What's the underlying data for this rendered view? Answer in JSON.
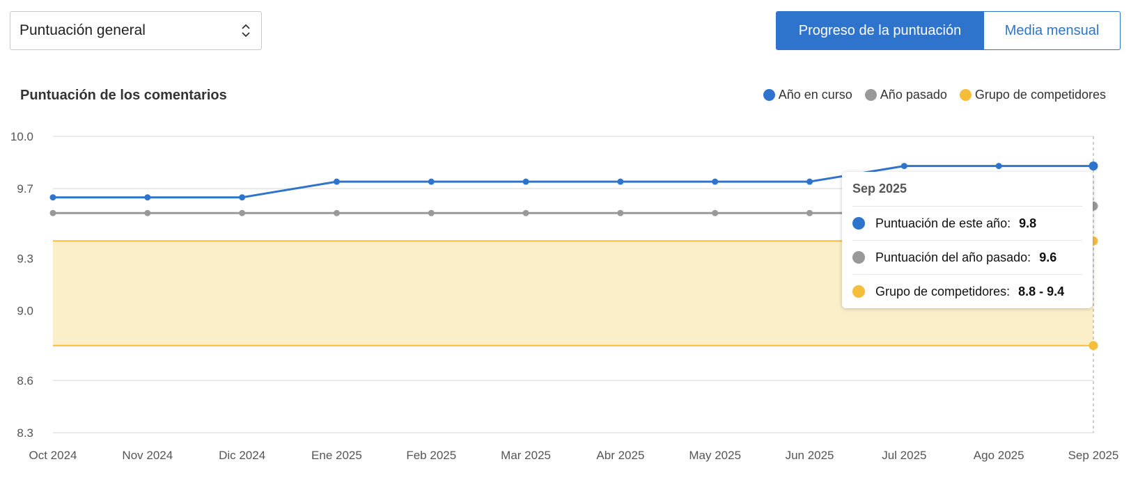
{
  "dropdown": {
    "value": "Puntuación general"
  },
  "toggle": {
    "active_label": "Progreso de la puntuación",
    "inactive_label": "Media mensual"
  },
  "colors": {
    "current": "#2f74cc",
    "past": "#999999",
    "competitors": "#f5bd3c",
    "band_fill": "#fbefc9"
  },
  "chart_data": {
    "type": "line",
    "title": "Puntuación de los comentarios",
    "categories": [
      "Oct 2024",
      "Nov 2024",
      "Dic 2024",
      "Ene 2025",
      "Feb 2025",
      "Mar 2025",
      "Abr 2025",
      "May 2025",
      "Jun 2025",
      "Jul 2025",
      "Ago 2025",
      "Sep 2025"
    ],
    "yticks": [
      "10.0",
      "9.7",
      "9.3",
      "9.0",
      "8.6",
      "8.3"
    ],
    "ylim": [
      8.3,
      10.0
    ],
    "legend_position": "top-right",
    "series": [
      {
        "name": "Año en curso",
        "values": [
          9.65,
          9.65,
          9.65,
          9.74,
          9.74,
          9.74,
          9.74,
          9.74,
          9.74,
          9.83,
          9.83,
          9.83
        ]
      },
      {
        "name": "Año pasado",
        "values": [
          9.56,
          9.56,
          9.56,
          9.56,
          9.56,
          9.56,
          9.56,
          9.56,
          9.56,
          9.56,
          9.56,
          9.6
        ]
      },
      {
        "name": "Grupo de competidores",
        "lower": [
          8.8,
          8.8,
          8.8,
          8.8,
          8.8,
          8.8,
          8.8,
          8.8,
          8.8,
          8.8,
          8.8,
          8.8
        ],
        "upper": [
          9.4,
          9.4,
          9.4,
          9.4,
          9.4,
          9.4,
          9.4,
          9.4,
          9.4,
          9.4,
          9.4,
          9.4
        ]
      }
    ]
  },
  "tooltip": {
    "title": "Sep 2025",
    "rows": [
      {
        "label": "Puntuación de este año:",
        "value": "9.8"
      },
      {
        "label": "Puntuación del año pasado:",
        "value": "9.6"
      },
      {
        "label": "Grupo de competidores:",
        "value": "8.8 - 9.4"
      }
    ]
  }
}
